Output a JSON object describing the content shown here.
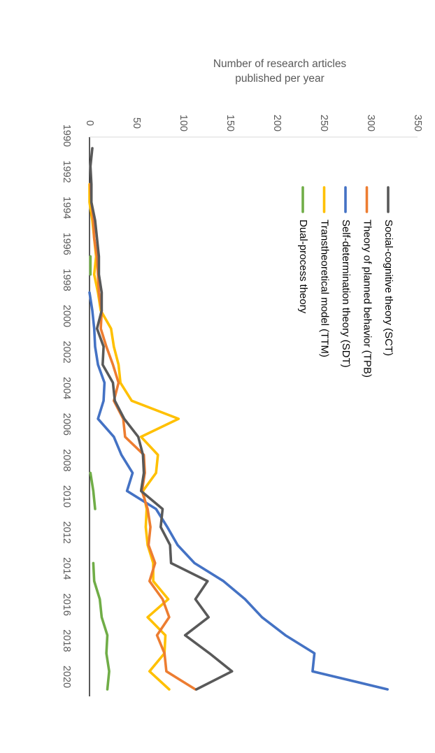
{
  "chart_data": {
    "type": "line",
    "title": "",
    "xlabel": "",
    "ylabel_lines": [
      "Number of research articles",
      "published per year"
    ],
    "x": [
      1990,
      1991,
      1992,
      1993,
      1994,
      1995,
      1996,
      1997,
      1998,
      1999,
      2000,
      2001,
      2002,
      2003,
      2004,
      2005,
      2006,
      2007,
      2008,
      2009,
      2010,
      2011,
      2012,
      2013,
      2014,
      2015,
      2016,
      2017,
      2018,
      2019,
      2020
    ],
    "x_tick_labels": [
      "1990",
      "1992",
      "1994",
      "1996",
      "1998",
      "2000",
      "2002",
      "2004",
      "2006",
      "2008",
      "2010",
      "2012",
      "2014",
      "2016",
      "2018",
      "2020"
    ],
    "ylim": [
      0,
      350
    ],
    "y_ticks": [
      "0",
      "50",
      "100",
      "150",
      "200",
      "250",
      "300",
      "350"
    ],
    "orientation": "rotated 90 degrees clockwise",
    "legend_position": "top-right",
    "series": [
      {
        "name": "Social-cognitive theory (SCT)",
        "color": "#595959",
        "values": [
          3,
          1,
          2,
          2,
          6,
          8,
          10,
          10,
          13,
          13,
          8,
          15,
          14,
          25,
          27,
          37,
          52,
          57,
          58,
          55,
          78,
          76,
          86,
          87,
          126,
          113,
          127,
          102,
          128,
          152,
          114
        ]
      },
      {
        "name": "Theory of planned behavior (TPB)",
        "color": "#ED7D31",
        "values": [
          null,
          null,
          1,
          2,
          4,
          5,
          8,
          9,
          10,
          13,
          12,
          18,
          25,
          31,
          26,
          36,
          38,
          58,
          59,
          56,
          62,
          65,
          63,
          70,
          64,
          78,
          85,
          72,
          80,
          82,
          113
        ]
      },
      {
        "name": "Self-determination theory (SDT)",
        "color": "#4472C4",
        "values": [
          null,
          null,
          null,
          null,
          null,
          null,
          null,
          null,
          0,
          3,
          5,
          6,
          9,
          16,
          15,
          9,
          26,
          34,
          46,
          40,
          71,
          83,
          94,
          112,
          143,
          166,
          184,
          209,
          240,
          238,
          318
        ]
      },
      {
        "name": "Transtheoretical model (TTM)",
        "color": "#FFC000",
        "values": [
          null,
          null,
          0,
          0,
          3,
          5,
          7,
          5,
          9,
          12,
          23,
          26,
          31,
          33,
          45,
          95,
          55,
          73,
          71,
          57,
          61,
          60,
          62,
          68,
          68,
          84,
          62,
          81,
          80,
          64,
          85
        ]
      },
      {
        "name": "Dual-process theory",
        "color": "#70AD47",
        "values": [
          null,
          null,
          null,
          null,
          null,
          null,
          1,
          1,
          null,
          null,
          null,
          null,
          null,
          null,
          null,
          null,
          null,
          null,
          1,
          4,
          6,
          null,
          null,
          4,
          5,
          11,
          13,
          19,
          18,
          21,
          19
        ]
      }
    ]
  }
}
